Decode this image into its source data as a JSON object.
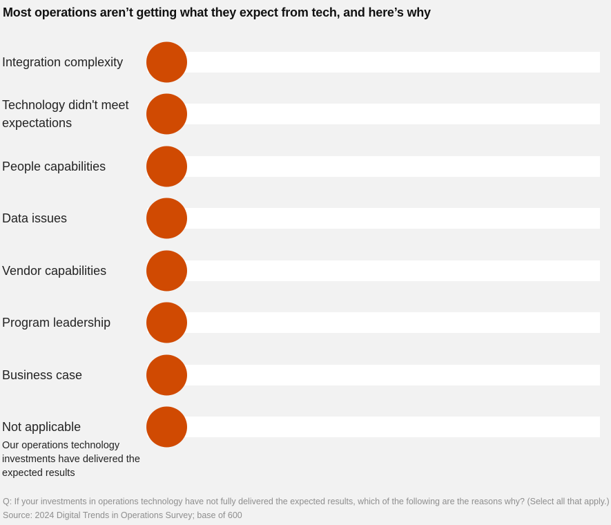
{
  "title": "Most operations aren’t getting what they expect from tech, and here’s why",
  "chart_data": {
    "type": "bar",
    "subtype": "dot-on-track",
    "orientation": "horizontal",
    "title": "Most operations aren’t getting what they expect from tech, and here’s why",
    "categories": [
      {
        "label": "Integration complexity"
      },
      {
        "label": "Technology didn't meet expectations"
      },
      {
        "label": "People capabilities"
      },
      {
        "label": "Data issues"
      },
      {
        "label": "Vendor capabilities"
      },
      {
        "label": "Program leadership"
      },
      {
        "label": "Business case"
      },
      {
        "label": "Not applicable",
        "note": "Our operations technology investments have delivered the expected results"
      }
    ],
    "layout": {
      "values_displayed": false,
      "marker_position": "start-of-track",
      "tracks_equal_length": true,
      "grid": "off",
      "legend": "none"
    },
    "colors": {
      "background": "#F2F2F2",
      "track": "#FFFFFF",
      "dot": "#D04A02"
    }
  },
  "footer": {
    "question": "Q: If your investments in operations technology have not fully delivered the expected results, which of the following are the reasons why? (Select all that apply.)",
    "source": "Source: 2024 Digital Trends in Operations Survey; base of 600"
  }
}
